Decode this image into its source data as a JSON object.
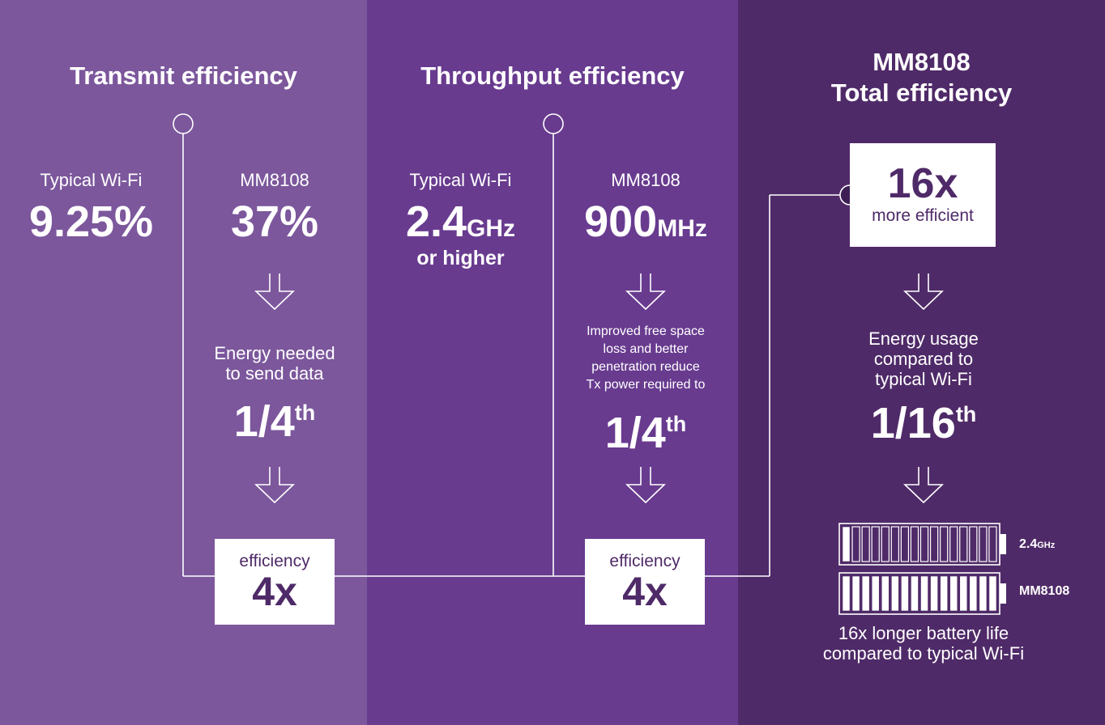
{
  "transmit": {
    "title": "Transmit efficiency",
    "wifi_label": "Typical Wi-Fi",
    "wifi_value": "9.25%",
    "mm_label": "MM8108",
    "mm_value": "37%",
    "energy_line1": "Energy needed",
    "energy_line2": "to send data",
    "fraction_main": "1/4",
    "fraction_sup": "th",
    "eff_label": "efficiency",
    "eff_value": "4x"
  },
  "throughput": {
    "title": "Throughput efficiency",
    "wifi_label": "Typical Wi-Fi",
    "wifi_value": "2.4",
    "wifi_unit": "GHz",
    "wifi_note": "or higher",
    "mm_label": "MM8108",
    "mm_value": "900",
    "mm_unit": "MHz",
    "desc_lines": [
      "Improved free space",
      "loss and better",
      "penetration reduce",
      "Tx power required to"
    ],
    "fraction_main": "1/4",
    "fraction_sup": "th",
    "eff_label": "efficiency",
    "eff_value": "4x"
  },
  "total": {
    "title_line1": "MM8108",
    "title_line2": "Total efficiency",
    "box_value": "16x",
    "box_label": "more efficient",
    "energy_lines": [
      "Energy usage",
      "compared to",
      "typical Wi-Fi"
    ],
    "fraction_main": "1/16",
    "fraction_sup": "th",
    "battery_wifi_label_main": "2.4",
    "battery_wifi_label_unit": "GHz",
    "battery_mm_label": "MM8108",
    "battery_wifi_level": 0.0625,
    "battery_mm_level": 1,
    "battery_segments": 16,
    "battery_caption_line1": "16x longer battery life",
    "battery_caption_line2": "compared to typical Wi-Fi"
  },
  "colors": {
    "panel1": "#7c579c",
    "panel2": "#683b8f",
    "panel3": "#4f2a68",
    "box_text": "#4f2a68"
  }
}
